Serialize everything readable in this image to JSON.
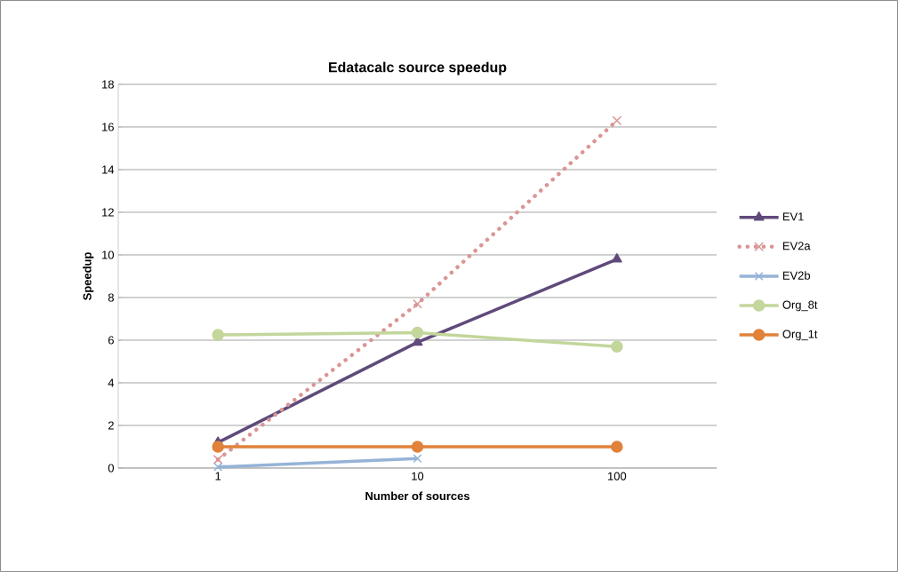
{
  "chart_data": {
    "type": "line",
    "title": "Edatacalc source speedup",
    "xlabel": "Number of sources",
    "ylabel": "Speedup",
    "categories": [
      "1",
      "10",
      "100"
    ],
    "series": [
      {
        "name": "EV1",
        "color": "#604a7b",
        "marker": "triangle",
        "line_style": "solid",
        "values": [
          1.2,
          5.9,
          9.8
        ]
      },
      {
        "name": "EV2a",
        "color": "#d99694",
        "marker": "cross",
        "line_style": "dotted",
        "values": [
          0.4,
          7.7,
          16.3
        ]
      },
      {
        "name": "EV2b",
        "color": "#95b3d7",
        "marker": "cross",
        "line_style": "solid",
        "values": [
          0.05,
          0.45,
          null
        ]
      },
      {
        "name": "Org_8t",
        "color": "#c3d69b",
        "marker": "circle",
        "line_style": "solid",
        "values": [
          6.25,
          6.35,
          5.7
        ]
      },
      {
        "name": "Org_1t",
        "color": "#e0823a",
        "marker": "circle",
        "line_style": "solid",
        "values": [
          1,
          1,
          1
        ]
      }
    ],
    "ylim": [
      0,
      18
    ],
    "yticks": [
      0,
      2,
      4,
      6,
      8,
      10,
      12,
      14,
      16,
      18
    ],
    "grid": "y",
    "legend": "right"
  }
}
